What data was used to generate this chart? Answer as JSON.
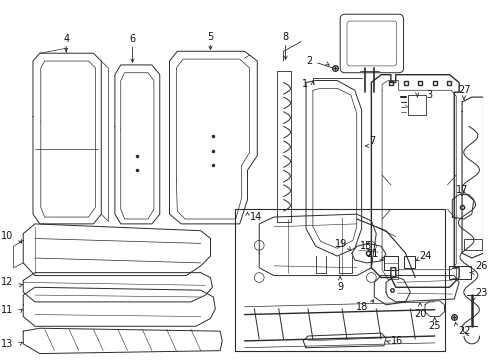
{
  "bg_color": "#ffffff",
  "lc": "#2a2a2a",
  "lw": 0.7,
  "fig_w": 4.89,
  "fig_h": 3.6,
  "dpi": 100
}
